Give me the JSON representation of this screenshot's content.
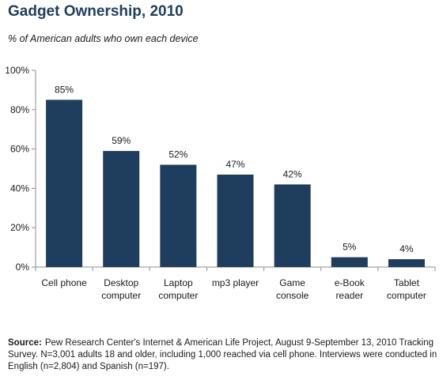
{
  "chart_data": {
    "type": "bar",
    "title": "Gadget Ownership, 2010",
    "subtitle": "% of American adults who own each device",
    "categories": [
      [
        "Cell phone"
      ],
      [
        "Desktop",
        "computer"
      ],
      [
        "Laptop",
        "computer"
      ],
      [
        "mp3 player"
      ],
      [
        "Game",
        "console"
      ],
      [
        "e-Book",
        "reader"
      ],
      [
        "Tablet",
        "computer"
      ]
    ],
    "values": [
      85,
      59,
      52,
      47,
      42,
      5,
      4
    ],
    "data_labels": [
      "85%",
      "59%",
      "52%",
      "47%",
      "42%",
      "5%",
      "4%"
    ],
    "ylim": [
      0,
      100
    ],
    "yticks": [
      {
        "value": 0,
        "label": "0%"
      },
      {
        "value": 20,
        "label": "20%"
      },
      {
        "value": 40,
        "label": "40%"
      },
      {
        "value": 60,
        "label": "60%"
      },
      {
        "value": 80,
        "label": "80%"
      },
      {
        "value": 100,
        "label": "100%"
      }
    ],
    "xlabel": "",
    "ylabel": "",
    "grid": false,
    "colors": {
      "bar": "#1f3e5e",
      "axis": "#8c8c8c",
      "text": "#1a1a1a"
    }
  },
  "footnote": {
    "label": "Source:",
    "text": "Pew Research Center's Internet & American Life Project, August 9-September 13, 2010 Tracking Survey. N=3,001 adults 18 and older, including 1,000 reached via cell phone. Interviews were conducted in English (n=2,804) and Spanish (n=197)."
  }
}
